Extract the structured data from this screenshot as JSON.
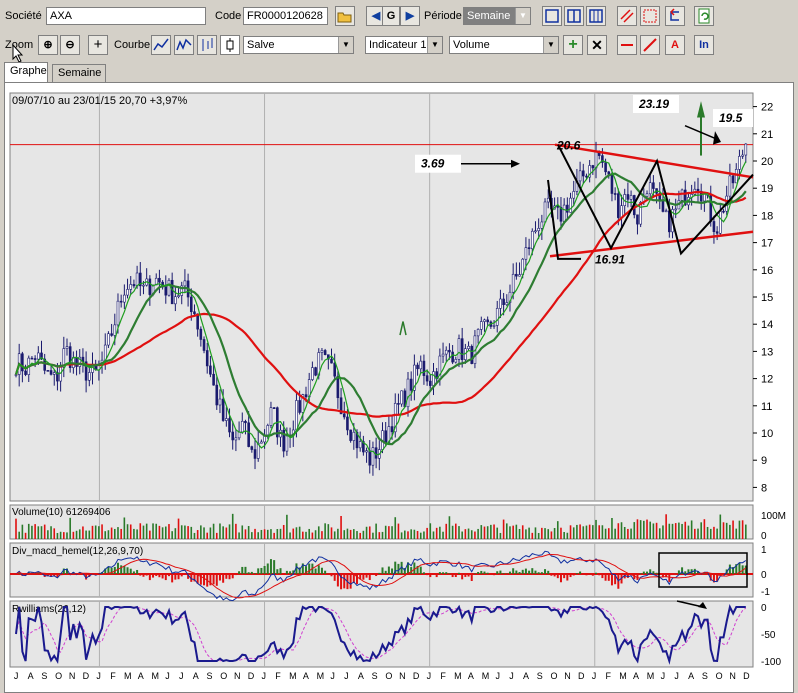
{
  "toolbar1": {
    "societe_label": "Société",
    "societe_value": "AXA",
    "code_label": "Code",
    "code_value": "FR0000120628",
    "go_label": "G",
    "periode_label": "Période",
    "periode_value": "Semaine"
  },
  "toolbar2": {
    "zoom_label": "Zoom",
    "courbe_label": "Courbe",
    "chart_style": "Salve",
    "indicator_select": "Indicateur 1",
    "indicator_value": "Volume",
    "text_tool_label": "A",
    "info_label": "In"
  },
  "tabs": [
    "Graphe",
    "Semaine"
  ],
  "chart_data": {
    "type": "candlestick",
    "header": "09/07/10 au 23/01/15  20,70  +3,97%",
    "price_axis": {
      "ticks": [
        "22",
        "21",
        "20",
        "19",
        "18",
        "17",
        "16",
        "15",
        "14",
        "13",
        "12",
        "11",
        "10",
        "9",
        "8"
      ],
      "range": [
        7.5,
        22.5
      ]
    },
    "annotations": [
      "23.19",
      "19.5",
      "20.6",
      "3.69",
      "16.91"
    ],
    "horizontal_line": 20.6,
    "price_close": [
      12.6,
      12.4,
      12.9,
      12.2,
      11.9,
      13.1,
      12.5,
      12.3,
      12.1,
      12.8,
      14.1,
      15.4,
      15.6,
      15.2,
      15.7,
      15.4,
      15.1,
      15.3,
      14.6,
      13.2,
      11.7,
      10.5,
      9.6,
      10.3,
      9.1,
      9.9,
      10.8,
      9.6,
      10.4,
      11.2,
      12.3,
      12.7,
      12.2,
      11.1,
      10.1,
      9.4,
      9.0,
      9.6,
      10.4,
      11.1,
      11.8,
      12.5,
      12.0,
      12.6,
      13.0,
      13.1,
      12.8,
      13.6,
      13.9,
      14.5,
      15.2,
      15.9,
      16.9,
      17.8,
      18.2,
      17.9,
      18.5,
      19.1,
      19.8,
      20.3,
      19.4,
      18.3,
      18.9,
      17.9,
      19.2,
      18.4,
      17.7,
      18.2,
      18.9,
      19.4,
      18.5,
      17.5,
      18.7,
      19.5,
      20.7
    ],
    "moving_averages": [
      {
        "label": "red",
        "color": "#e01010"
      },
      {
        "label": "dark green",
        "color": "#2e7d32"
      },
      {
        "label": "green",
        "color": "#1e9e1e"
      }
    ],
    "volume": {
      "label": "Volume(10) 61269406",
      "axis_ticks": [
        "100M",
        "0"
      ]
    },
    "macd": {
      "label": "Div_macd_hemel(12,26,9,70)",
      "axis_ticks": [
        "1",
        "0",
        "-1"
      ]
    },
    "williams": {
      "label": "Rwilliams(26,12)",
      "axis_ticks": [
        "0",
        "-50",
        "-100"
      ]
    },
    "x_axis_months": [
      "J",
      "A",
      "S",
      "O",
      "N",
      "D",
      "J",
      "F",
      "M",
      "A",
      "M",
      "J",
      "J",
      "A",
      "S",
      "O",
      "N",
      "D",
      "J",
      "F",
      "M",
      "A",
      "M",
      "J",
      "J",
      "A",
      "S",
      "O",
      "N",
      "D",
      "J",
      "F",
      "M",
      "A",
      "M",
      "J",
      "J",
      "A",
      "S",
      "O",
      "N",
      "D",
      "J",
      "F",
      "M",
      "A",
      "M",
      "J",
      "J",
      "A",
      "S",
      "O",
      "N",
      "D"
    ]
  }
}
